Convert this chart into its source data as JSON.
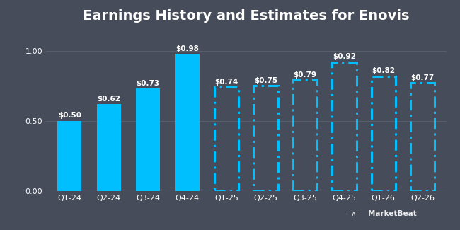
{
  "categories": [
    "Q1-24",
    "Q2-24",
    "Q3-24",
    "Q4-24",
    "Q1-25",
    "Q2-25",
    "Q3-25",
    "Q4-25",
    "Q1-26",
    "Q2-26"
  ],
  "values": [
    0.5,
    0.62,
    0.73,
    0.98,
    0.74,
    0.75,
    0.79,
    0.92,
    0.82,
    0.77
  ],
  "labels": [
    "$0.50",
    "$0.62",
    "$0.73",
    "$0.98",
    "$0.74",
    "$0.75",
    "$0.79",
    "$0.92",
    "$0.82",
    "$0.77"
  ],
  "is_estimate": [
    false,
    false,
    false,
    false,
    true,
    true,
    true,
    true,
    true,
    true
  ],
  "bar_color_solid": "#00BFFF",
  "bar_color_estimate": "#00BFFF",
  "background_color": "#464c59",
  "text_color": "#ffffff",
  "grid_color": "#565d6b",
  "title": "Earnings History and Estimates for Enovis",
  "title_fontsize": 14,
  "label_fontsize": 7.5,
  "tick_fontsize": 8,
  "ylim": [
    0.0,
    1.15
  ],
  "yticks": [
    0.0,
    0.5,
    1.0
  ],
  "ytick_labels": [
    "0.00",
    "0.50",
    "1.00"
  ],
  "bar_width": 0.62,
  "dash_linewidth": 2.2
}
